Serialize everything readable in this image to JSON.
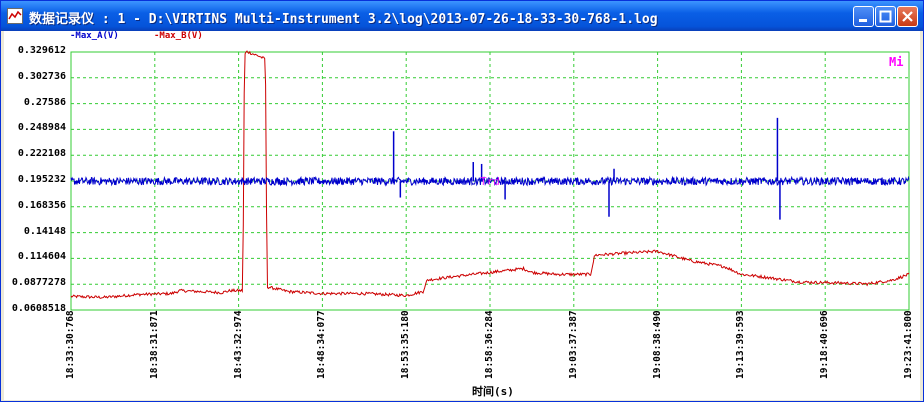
{
  "window": {
    "title": "数据记录仪 : 1 - D:\\VIRTINS Multi-Instrument 3.2\\log\\2013-07-26-18-33-30-768-1.log"
  },
  "legend": [
    {
      "label": "-Max_A(V)",
      "color": "#0000cc"
    },
    {
      "label": "-Max_B(V)",
      "color": "#cc0000"
    }
  ],
  "corner_label": "Mi",
  "mid_label": "Trd",
  "chart_data": {
    "type": "line",
    "xlabel": "时间(s)",
    "ylabel": "",
    "x_ticks": [
      "18:33:30:768",
      "18:38:31:871",
      "18:43:32:974",
      "18:48:34:077",
      "18:53:35:180",
      "18:58:36:284",
      "19:03:37:387",
      "19:08:38:490",
      "19:13:39:593",
      "19:18:40:696",
      "19:23:41:800"
    ],
    "y_ticks": [
      "0.329612",
      "0.302736",
      "0.27586",
      "0.248984",
      "0.222108",
      "0.195232",
      "0.168356",
      "0.14148",
      "0.114604",
      "0.0877278",
      "0.0608518"
    ],
    "ylim": [
      0.0608518,
      0.329612
    ],
    "grid": true,
    "grid_color": "#33cc33",
    "series": [
      {
        "name": "Max_A(V)",
        "color": "#0000cc",
        "baseline": 0.195,
        "noise": 0.004,
        "spikes": [
          {
            "x": 0.385,
            "y": 0.247
          },
          {
            "x": 0.393,
            "y": 0.178
          },
          {
            "x": 0.48,
            "y": 0.215
          },
          {
            "x": 0.49,
            "y": 0.213
          },
          {
            "x": 0.518,
            "y": 0.176
          },
          {
            "x": 0.642,
            "y": 0.158
          },
          {
            "x": 0.648,
            "y": 0.208
          },
          {
            "x": 0.843,
            "y": 0.261
          },
          {
            "x": 0.846,
            "y": 0.155
          }
        ]
      },
      {
        "name": "Max_B(V)",
        "color": "#cc0000",
        "noise": 0.0015,
        "points": [
          [
            0.0,
            0.075
          ],
          [
            0.04,
            0.074
          ],
          [
            0.08,
            0.077
          ],
          [
            0.12,
            0.078
          ],
          [
            0.13,
            0.081
          ],
          [
            0.18,
            0.079
          ],
          [
            0.19,
            0.081
          ],
          [
            0.205,
            0.081
          ],
          [
            0.207,
            0.327
          ],
          [
            0.21,
            0.33
          ],
          [
            0.225,
            0.325
          ],
          [
            0.232,
            0.322
          ],
          [
            0.234,
            0.085
          ],
          [
            0.26,
            0.08
          ],
          [
            0.3,
            0.078
          ],
          [
            0.35,
            0.078
          ],
          [
            0.4,
            0.076
          ],
          [
            0.42,
            0.08
          ],
          [
            0.425,
            0.092
          ],
          [
            0.46,
            0.096
          ],
          [
            0.5,
            0.1
          ],
          [
            0.54,
            0.104
          ],
          [
            0.55,
            0.1
          ],
          [
            0.58,
            0.098
          ],
          [
            0.62,
            0.098
          ],
          [
            0.625,
            0.118
          ],
          [
            0.66,
            0.12
          ],
          [
            0.7,
            0.122
          ],
          [
            0.74,
            0.112
          ],
          [
            0.78,
            0.106
          ],
          [
            0.8,
            0.098
          ],
          [
            0.82,
            0.096
          ],
          [
            0.87,
            0.09
          ],
          [
            0.92,
            0.089
          ],
          [
            0.95,
            0.088
          ],
          [
            0.98,
            0.092
          ],
          [
            1.0,
            0.098
          ]
        ]
      }
    ]
  }
}
